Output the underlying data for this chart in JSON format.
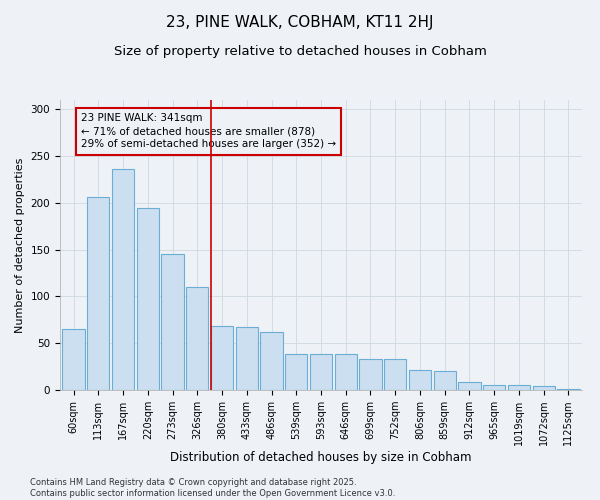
{
  "title": "23, PINE WALK, COBHAM, KT11 2HJ",
  "subtitle": "Size of property relative to detached houses in Cobham",
  "xlabel": "Distribution of detached houses by size in Cobham",
  "ylabel": "Number of detached properties",
  "bar_labels": [
    "60sqm",
    "113sqm",
    "167sqm",
    "220sqm",
    "273sqm",
    "326sqm",
    "380sqm",
    "433sqm",
    "486sqm",
    "539sqm",
    "593sqm",
    "646sqm",
    "699sqm",
    "752sqm",
    "806sqm",
    "859sqm",
    "912sqm",
    "965sqm",
    "1019sqm",
    "1072sqm",
    "1125sqm"
  ],
  "bar_values": [
    65,
    206,
    236,
    195,
    145,
    110,
    68,
    67,
    62,
    39,
    39,
    39,
    33,
    33,
    21,
    20,
    9,
    5,
    5,
    4,
    1
  ],
  "bar_color": "#ccdff0",
  "bar_edge_color": "#6aaed6",
  "vline_x_index": 6,
  "vline_color": "#cc0000",
  "annotation_text": "23 PINE WALK: 341sqm\n← 71% of detached houses are smaller (878)\n29% of semi-detached houses are larger (352) →",
  "annotation_box_color": "#cc0000",
  "grid_color": "#d0d8e0",
  "background_color": "#eef2f7",
  "ylim": [
    0,
    310
  ],
  "yticks": [
    0,
    50,
    100,
    150,
    200,
    250,
    300
  ],
  "footer": "Contains HM Land Registry data © Crown copyright and database right 2025.\nContains public sector information licensed under the Open Government Licence v3.0.",
  "title_fontsize": 11,
  "subtitle_fontsize": 9.5,
  "xlabel_fontsize": 8.5,
  "ylabel_fontsize": 8,
  "tick_fontsize": 7,
  "annotation_fontsize": 7.5,
  "footer_fontsize": 6
}
